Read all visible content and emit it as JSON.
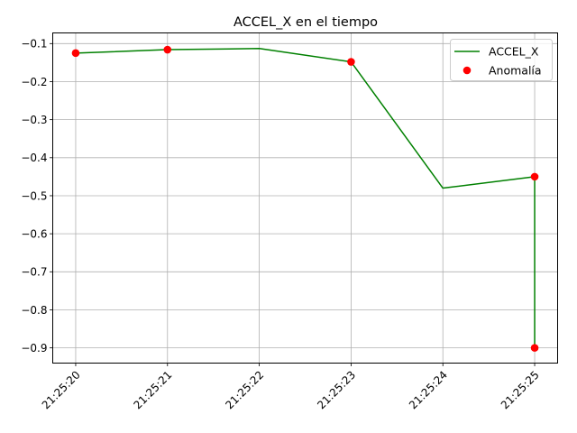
{
  "chart_data": {
    "type": "line",
    "title": "ACCEL_X en el tiempo",
    "xlabel": "",
    "ylabel": "",
    "x_ticks": [
      "21:25:20",
      "21:25:21",
      "21:25:22",
      "21:25:23",
      "21:25:24",
      "21:25:25"
    ],
    "y_ticks": [
      -0.1,
      -0.2,
      -0.3,
      -0.4,
      -0.5,
      -0.6,
      -0.7,
      -0.8,
      -0.9
    ],
    "xlim": [
      -0.25,
      5.25
    ],
    "ylim": [
      -0.94,
      -0.072
    ],
    "grid": true,
    "legend_position": "top-right",
    "series": [
      {
        "name": "ACCEL_X",
        "kind": "line",
        "color": "#008000",
        "x": [
          0,
          1,
          2,
          3,
          4,
          5,
          5
        ],
        "values": [
          -0.125,
          -0.116,
          -0.113,
          -0.148,
          -0.48,
          -0.45,
          -0.9
        ]
      },
      {
        "name": "Anomalía",
        "kind": "scatter",
        "color": "#ff0000",
        "x": [
          0,
          1,
          3,
          5,
          5
        ],
        "values": [
          -0.125,
          -0.116,
          -0.148,
          -0.45,
          -0.9
        ]
      }
    ]
  }
}
